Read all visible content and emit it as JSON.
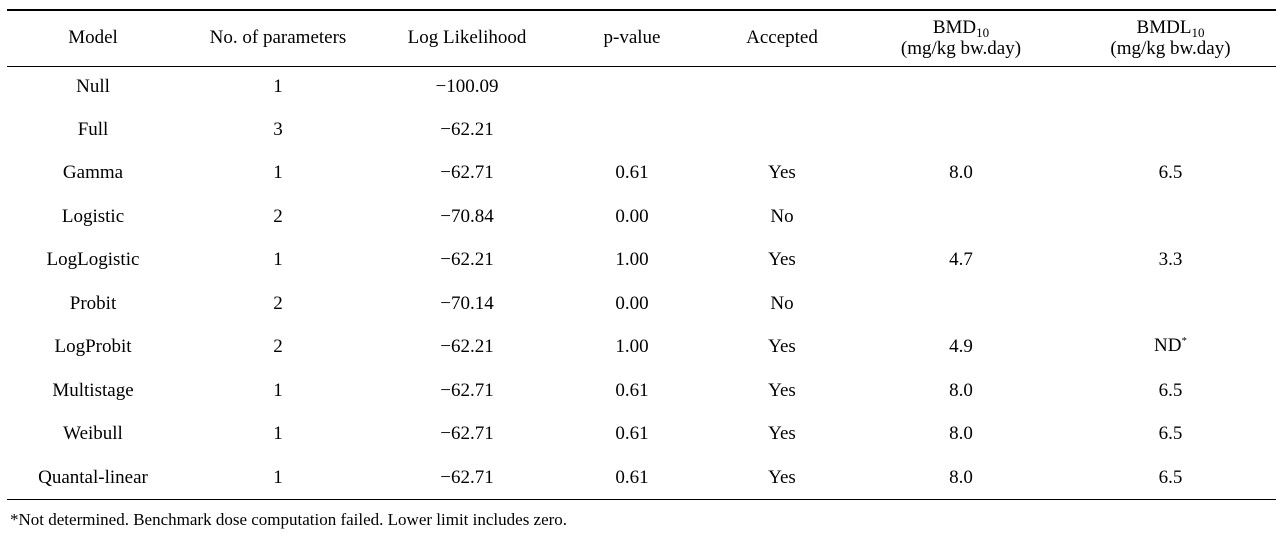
{
  "table": {
    "headers": {
      "model": "Model",
      "params": "No. of parameters",
      "loglik": "Log Likelihood",
      "pvalue": "p-value",
      "accepted": "Accepted",
      "bmd_main": "BMD",
      "bmd_sub": "10",
      "bmd_unit": "(mg/kg bw.day)",
      "bmdl_main": "BMDL",
      "bmdl_sub": "10",
      "bmdl_unit": "(mg/kg bw.day)"
    },
    "rows": [
      {
        "model": "Null",
        "params": "1",
        "loglik": "−100.09",
        "pvalue": "",
        "accepted": "",
        "bmd": "",
        "bmdl": "",
        "bmdl_sup": ""
      },
      {
        "model": "Full",
        "params": "3",
        "loglik": "−62.21",
        "pvalue": "",
        "accepted": "",
        "bmd": "",
        "bmdl": "",
        "bmdl_sup": ""
      },
      {
        "model": "Gamma",
        "params": "1",
        "loglik": "−62.71",
        "pvalue": "0.61",
        "accepted": "Yes",
        "bmd": "8.0",
        "bmdl": "6.5",
        "bmdl_sup": ""
      },
      {
        "model": "Logistic",
        "params": "2",
        "loglik": "−70.84",
        "pvalue": "0.00",
        "accepted": "No",
        "bmd": "",
        "bmdl": "",
        "bmdl_sup": ""
      },
      {
        "model": "LogLogistic",
        "params": "1",
        "loglik": "−62.21",
        "pvalue": "1.00",
        "accepted": "Yes",
        "bmd": "4.7",
        "bmdl": "3.3",
        "bmdl_sup": ""
      },
      {
        "model": "Probit",
        "params": "2",
        "loglik": "−70.14",
        "pvalue": "0.00",
        "accepted": "No",
        "bmd": "",
        "bmdl": "",
        "bmdl_sup": ""
      },
      {
        "model": "LogProbit",
        "params": "2",
        "loglik": "−62.21",
        "pvalue": "1.00",
        "accepted": "Yes",
        "bmd": "4.9",
        "bmdl": "ND",
        "bmdl_sup": "*"
      },
      {
        "model": "Multistage",
        "params": "1",
        "loglik": "−62.71",
        "pvalue": "0.61",
        "accepted": "Yes",
        "bmd": "8.0",
        "bmdl": "6.5",
        "bmdl_sup": ""
      },
      {
        "model": "Weibull",
        "params": "1",
        "loglik": "−62.71",
        "pvalue": "0.61",
        "accepted": "Yes",
        "bmd": "8.0",
        "bmdl": "6.5",
        "bmdl_sup": ""
      },
      {
        "model": "Quantal-linear",
        "params": "1",
        "loglik": "−62.71",
        "pvalue": "0.61",
        "accepted": "Yes",
        "bmd": "8.0",
        "bmdl": "6.5",
        "bmdl_sup": ""
      }
    ]
  },
  "footnote": "*Not determined. Benchmark dose computation failed. Lower limit includes zero."
}
